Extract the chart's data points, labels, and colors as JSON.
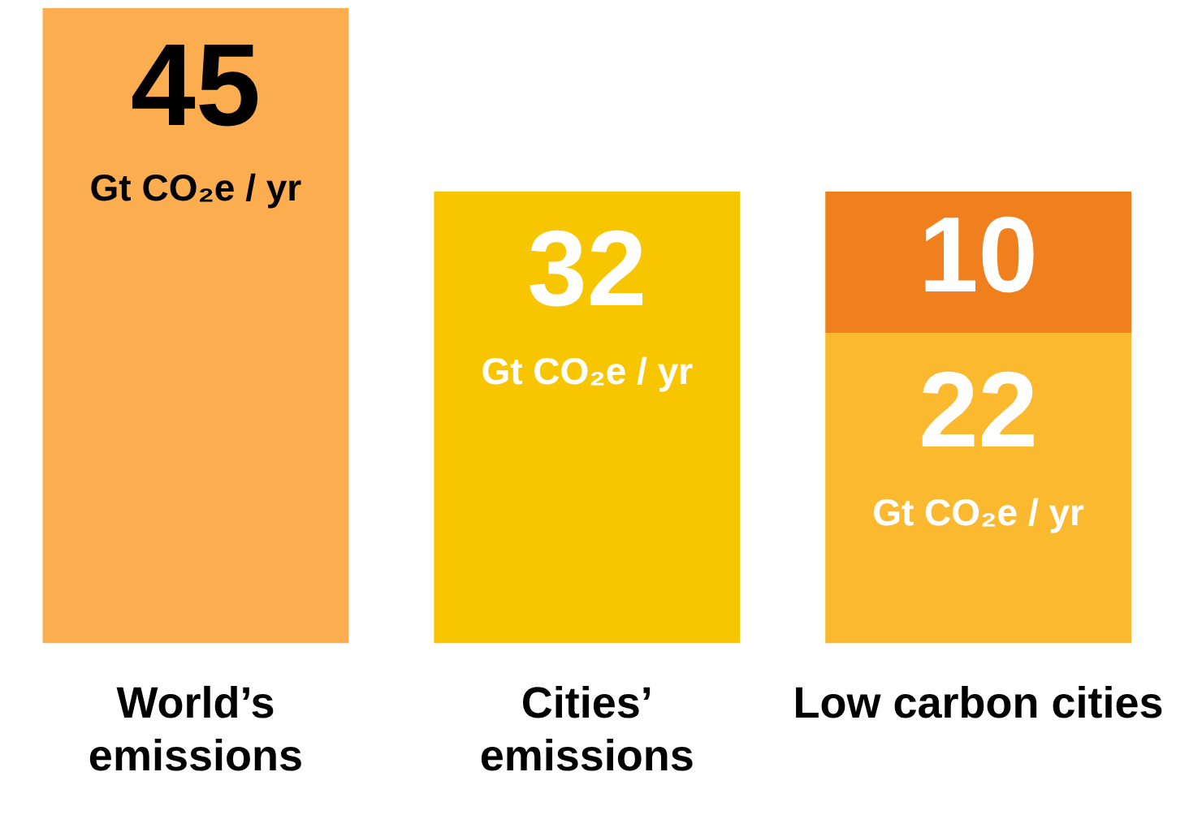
{
  "chart_data": {
    "type": "bar",
    "stacked": true,
    "categories": [
      "World’s emissions",
      "Cities’ emissions",
      "Low carbon cities"
    ],
    "series": [
      {
        "colors": [
          "#fbad4f",
          "#f7c600",
          "#fbb930"
        ],
        "values": [
          45,
          32,
          22
        ]
      },
      {
        "color": "#f07f1d",
        "values": [
          null,
          null,
          10
        ]
      }
    ],
    "ylim": [
      0,
      45
    ],
    "data_labels": true,
    "legend": false,
    "grid": false,
    "annotations": [
      "Gt CO₂e / yr",
      "Gt CO₂e / yr",
      "Gt CO₂e / yr"
    ]
  }
}
